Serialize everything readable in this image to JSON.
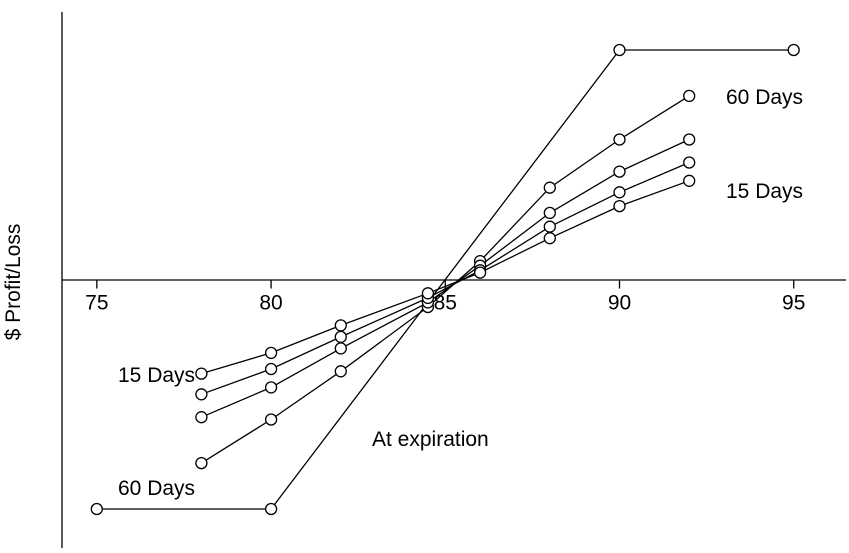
{
  "chart_data": {
    "type": "line",
    "ylabel": "$ Profit/Loss",
    "xlim": [
      74,
      96.5
    ],
    "ylim": [
      -100,
      100
    ],
    "x_ticks": [
      "75",
      "80",
      "85",
      "90",
      "95"
    ],
    "y_ticks": [],
    "grid": false,
    "annotations": [
      "60 Days",
      "15 Days",
      "15 Days",
      "60 Days",
      "At expiration"
    ],
    "series": [
      {
        "name": "At expiration",
        "x": [
          75,
          80,
          90,
          95
        ],
        "y": [
          -100,
          -100,
          100,
          100
        ]
      },
      {
        "x": [
          78,
          80,
          82,
          84.5,
          86,
          88,
          90,
          92
        ],
        "y": [
          -80,
          -61,
          -40,
          -12,
          8,
          40,
          61,
          80
        ]
      },
      {
        "x": [
          78,
          80,
          82,
          84.5,
          86,
          88,
          90,
          92
        ],
        "y": [
          -60,
          -47,
          -30,
          -10,
          6,
          29,
          47,
          61
        ]
      },
      {
        "x": [
          78,
          80,
          82,
          84.5,
          86,
          88,
          90,
          92
        ],
        "y": [
          -50,
          -39,
          -25,
          -8,
          4,
          23,
          38,
          51
        ]
      },
      {
        "x": [
          78,
          80,
          82,
          84.5,
          86,
          88,
          90,
          92
        ],
        "y": [
          -41,
          -32,
          -20,
          -6,
          3,
          18,
          32,
          43
        ]
      }
    ]
  }
}
